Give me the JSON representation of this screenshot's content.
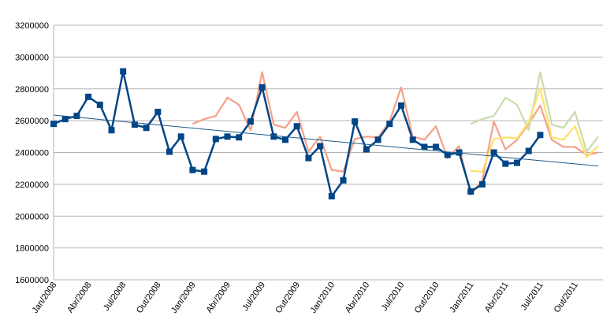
{
  "chart_data": {
    "type": "line",
    "categories": [
      "Jan/2008",
      null,
      null,
      "Abr/2008",
      null,
      null,
      "Jul/2008",
      null,
      null,
      "Out/2008",
      null,
      null,
      "Jan/2009",
      null,
      null,
      "Abr/2009",
      null,
      null,
      "Jul/2009",
      null,
      null,
      "Out/2009",
      null,
      null,
      "Jan/2010",
      null,
      null,
      "Abr/2010",
      null,
      null,
      "Jul/2010",
      null,
      null,
      "Out/2010",
      null,
      null,
      "Jan/2011",
      null,
      null,
      "Abr/2011",
      null,
      null,
      "Jul/2011",
      null,
      null,
      "Out/2011",
      null,
      null
    ],
    "series": [
      {
        "color": "#f4a08a",
        "values": [
          null,
          null,
          null,
          null,
          null,
          null,
          null,
          null,
          null,
          null,
          null,
          null,
          2580000,
          2610000,
          2630000,
          2745000,
          2700000,
          2540000,
          2905000,
          2575000,
          2555000,
          2655000,
          2405000,
          2500000,
          2290000,
          2280000,
          2485000,
          2500000,
          2495000,
          2595000,
          2810000,
          2500000,
          2480000,
          2565000,
          2365000,
          2440000,
          2135000,
          2225000,
          2595000,
          2420000,
          2480000,
          2580000,
          2695000,
          2480000,
          2435000,
          2435000,
          2385000,
          2400000
        ]
      },
      {
        "color": "#c8dcaa",
        "values": [
          null,
          null,
          null,
          null,
          null,
          null,
          null,
          null,
          null,
          null,
          null,
          null,
          null,
          null,
          null,
          null,
          null,
          null,
          null,
          null,
          null,
          null,
          null,
          null,
          null,
          null,
          null,
          null,
          null,
          null,
          null,
          null,
          null,
          null,
          null,
          null,
          2580000,
          2610000,
          2630000,
          2745000,
          2700000,
          2540000,
          2905000,
          2575000,
          2555000,
          2655000,
          2405000,
          2500000
        ]
      },
      {
        "color": "#ffe169",
        "values": [
          null,
          null,
          null,
          null,
          null,
          null,
          null,
          null,
          null,
          null,
          null,
          null,
          null,
          null,
          null,
          null,
          null,
          null,
          null,
          null,
          null,
          null,
          null,
          null,
          null,
          null,
          null,
          null,
          null,
          null,
          null,
          null,
          null,
          null,
          null,
          null,
          2285000,
          2280000,
          2485000,
          2495000,
          2490000,
          2590000,
          2805000,
          2495000,
          2480000,
          2565000,
          2370000,
          2440000
        ]
      },
      {
        "color": "#004586",
        "markers": true,
        "values": [
          2580000,
          2610000,
          2630000,
          2750000,
          2700000,
          2540000,
          2910000,
          2575000,
          2555000,
          2655000,
          2405000,
          2500000,
          2290000,
          2280000,
          2485000,
          2500000,
          2495000,
          2595000,
          2810000,
          2500000,
          2480000,
          2565000,
          2365000,
          2440000,
          2125000,
          2225000,
          2595000,
          2420000,
          2480000,
          2580000,
          2695000,
          2480000,
          2435000,
          2435000,
          2385000,
          2400000,
          2155000,
          2200000,
          2400000,
          2330000,
          2335000,
          2410000,
          2510000,
          null,
          null,
          null,
          null,
          null
        ]
      }
    ],
    "trendline": {
      "color": "#1f5a8a",
      "values": [
        2635000,
        2315000
      ]
    },
    "ylim": [
      1600000,
      3200000
    ],
    "yticks": [
      1600000,
      1800000,
      2000000,
      2200000,
      2400000,
      2600000,
      2800000,
      3000000,
      3200000
    ],
    "grid": true
  }
}
